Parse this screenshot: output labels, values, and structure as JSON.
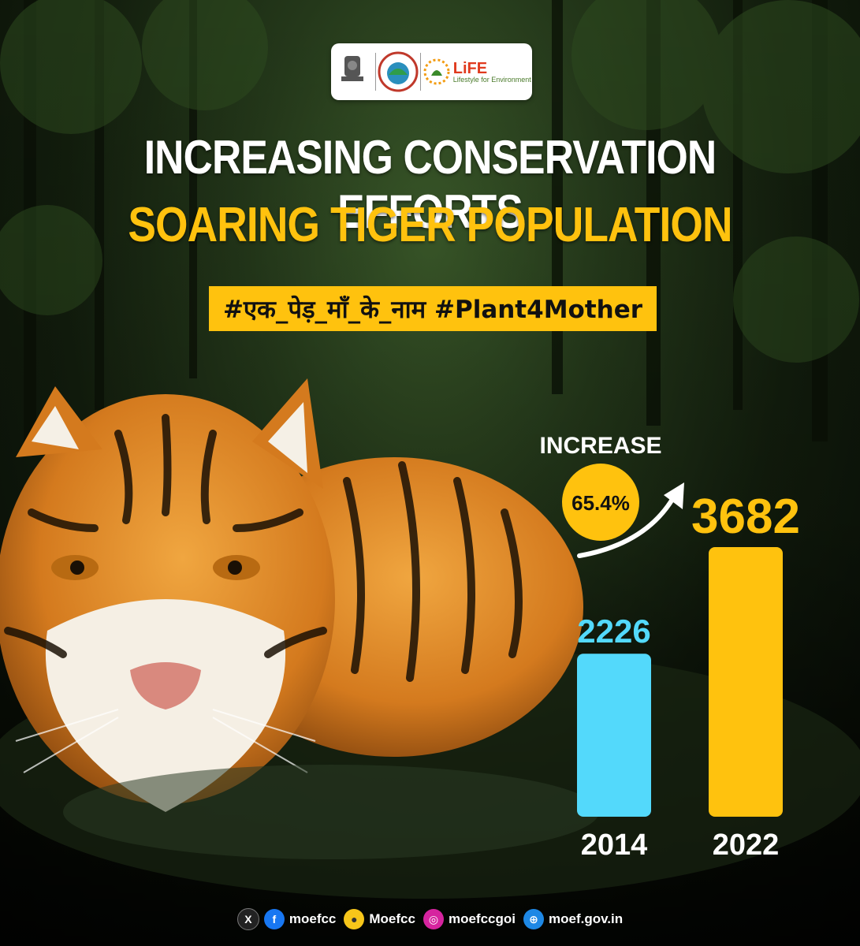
{
  "header": {
    "logos": {
      "emblem_caption": "सत्यमेव जयते",
      "life_title": "LiFE",
      "life_subtitle": "Lifestyle for Environment"
    },
    "title_line1": "INCREASING CONSERVATION EFFORTS",
    "title_line2": "SOARING TIGER POPULATION",
    "hashtag": "#एक_पेड़_माँ_के_नाम #Plant4Mother"
  },
  "chart_data": {
    "type": "bar",
    "categories": [
      "2014",
      "2022"
    ],
    "values": [
      2226,
      3682
    ],
    "value_labels": [
      "2226",
      "3682"
    ],
    "colors": [
      "#53d9fb",
      "#ffc20e"
    ],
    "annotation": {
      "label": "INCREASE",
      "value": "65.4%",
      "color": "#ffc20e"
    },
    "title": "",
    "xlabel": "",
    "ylabel": "",
    "grid": false
  },
  "footer": {
    "items": [
      {
        "icon": "x-icon",
        "label": ""
      },
      {
        "icon": "facebook-icon",
        "label": "moefcc"
      },
      {
        "icon": "koo-icon",
        "label": "Moefcc"
      },
      {
        "icon": "instagram-icon",
        "label": "moefccgoi"
      },
      {
        "icon": "globe-icon",
        "label": "moef.gov.in"
      }
    ]
  },
  "colors": {
    "accent": "#ffc20e",
    "bar_2014": "#53d9fb",
    "bar_2022": "#ffc20e",
    "title_white": "#ffffff"
  }
}
